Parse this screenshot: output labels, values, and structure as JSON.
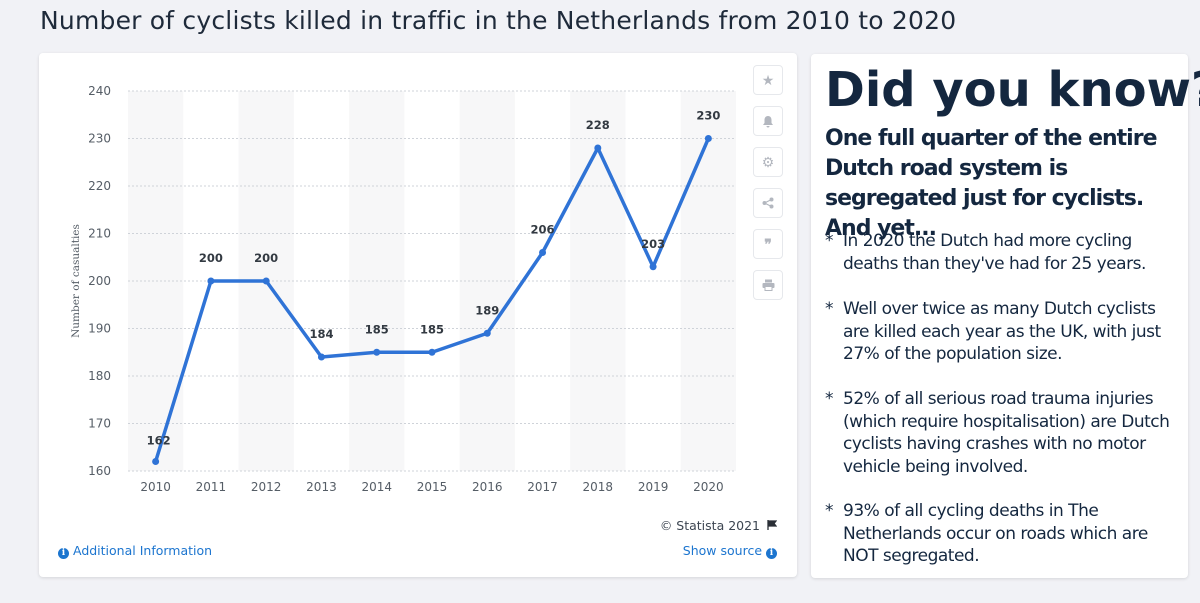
{
  "page": {
    "title": "Number of cyclists killed in traffic in the Netherlands from 2010 to 2020"
  },
  "chart_data": {
    "type": "line",
    "title": "Number of cyclists killed in traffic in the Netherlands from 2010 to 2020",
    "categories": [
      "2010",
      "2011",
      "2012",
      "2013",
      "2014",
      "2015",
      "2016",
      "2017",
      "2018",
      "2019",
      "2020"
    ],
    "values": [
      162,
      200,
      200,
      184,
      185,
      185,
      189,
      206,
      228,
      203,
      230
    ],
    "data_labels": [
      "162",
      "200",
      "200",
      "184",
      "185",
      "185",
      "189",
      "206",
      "228",
      "203",
      "230"
    ],
    "xlabel": "",
    "ylabel": "Number of casualties",
    "ylim": [
      160,
      240
    ],
    "yticks": [
      160,
      170,
      180,
      190,
      200,
      210,
      220,
      230,
      240
    ],
    "ytick_labels": [
      "160",
      "170",
      "180",
      "190",
      "200",
      "210",
      "220",
      "230",
      "240"
    ],
    "grid": true,
    "line_color": "#2f73d6"
  },
  "chart_footer": {
    "copyright": "© Statista 2021",
    "additional_info": "Additional Information",
    "show_source": "Show source"
  },
  "side_buttons": [
    {
      "icon": "star-icon",
      "glyph": "★"
    },
    {
      "icon": "bell-icon",
      "glyph": "🔔"
    },
    {
      "icon": "gear-icon",
      "glyph": "⚙"
    },
    {
      "icon": "share-icon",
      "glyph": "⋖"
    },
    {
      "icon": "quote-icon",
      "glyph": "❞"
    },
    {
      "icon": "print-icon",
      "glyph": "⎙"
    }
  ],
  "info": {
    "heading": "Did you know?",
    "intro": "One full quarter of the entire Dutch road system is segregated just for cyclists.  And yet...",
    "bullet": "*",
    "facts": [
      "In 2020 the Dutch had more cycling deaths than they've had for 25 years.",
      "Well over twice as many Dutch cyclists are killed each year as the UK, with just 27% of the population size.",
      "52% of all serious road trauma injuries (which require hospitalisation) are Dutch cyclists having crashes with no motor vehicle being involved.",
      "93% of all cycling deaths in The Netherlands occur on roads which are NOT segregated."
    ]
  },
  "colors": {
    "accent": "#1c75cf",
    "line": "#2f73d6",
    "heading": "#14273f"
  }
}
